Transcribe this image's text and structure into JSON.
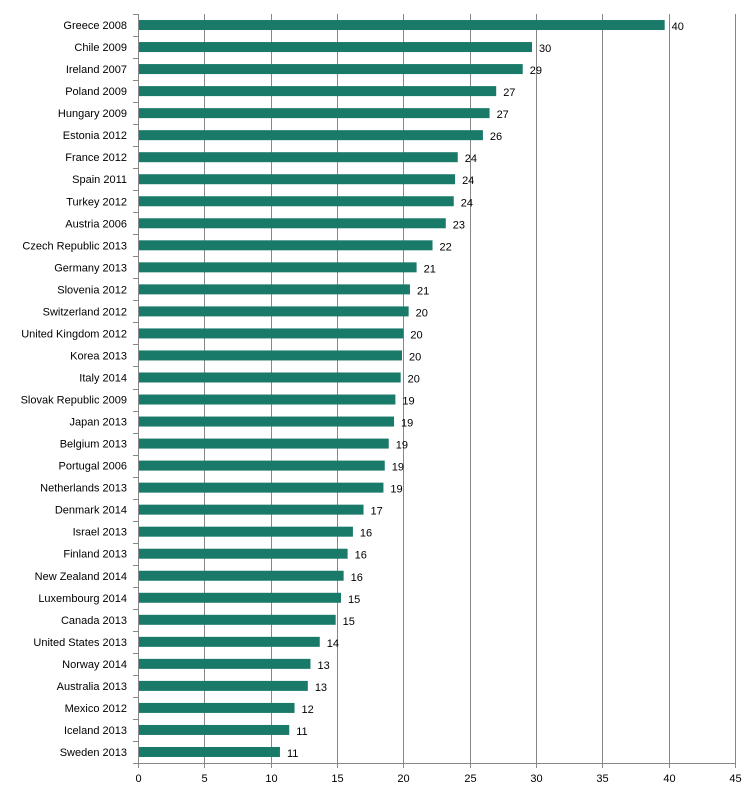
{
  "chart_data": {
    "type": "bar",
    "orientation": "horizontal",
    "title": "",
    "xlabel": "",
    "ylabel": "",
    "xlim": [
      0,
      45
    ],
    "xticks": [
      0,
      5,
      10,
      15,
      20,
      25,
      30,
      35,
      40,
      45
    ],
    "grid": "vertical",
    "legend": "none",
    "bar_color": "#1a7a6a",
    "categories": [
      "Greece 2008",
      "Chile 2009",
      "Ireland 2007",
      "Poland 2009",
      "Hungary 2009",
      "Estonia 2012",
      "France 2012",
      "Spain 2011",
      "Turkey 2012",
      "Austria 2006",
      "Czech Republic 2013",
      "Germany 2013",
      "Slovenia 2012",
      "Switzerland 2012",
      "United Kingdom 2012",
      "Korea 2013",
      "Italy 2014",
      "Slovak Republic 2009",
      "Japan 2013",
      "Belgium 2013",
      "Portugal 2006",
      "Netherlands 2013",
      "Denmark 2014",
      "Israel 2013",
      "Finland 2013",
      "New Zealand 2014",
      "Luxembourg 2014",
      "Canada 2013",
      "United States 2013",
      "Norway 2014",
      "Australia 2013",
      "Mexico 2012",
      "Iceland 2013",
      "Sweden 2013"
    ],
    "values": [
      39.7,
      29.7,
      29.0,
      27.0,
      26.5,
      26.0,
      24.1,
      23.9,
      23.8,
      23.2,
      22.2,
      21.0,
      20.5,
      20.4,
      20.0,
      19.9,
      19.8,
      19.4,
      19.3,
      18.9,
      18.6,
      18.5,
      17.0,
      16.2,
      15.8,
      15.5,
      15.3,
      14.9,
      13.7,
      13.0,
      12.8,
      11.8,
      11.4,
      10.7
    ],
    "value_labels": [
      "40",
      "30",
      "29",
      "27",
      "27",
      "26",
      "24",
      "24",
      "24",
      "23",
      "22",
      "21",
      "21",
      "20",
      "20",
      "20",
      "20",
      "19",
      "19",
      "19",
      "19",
      "19",
      "17",
      "16",
      "16",
      "16",
      "15",
      "15",
      "14",
      "13",
      "13",
      "12",
      "11",
      "11"
    ]
  }
}
